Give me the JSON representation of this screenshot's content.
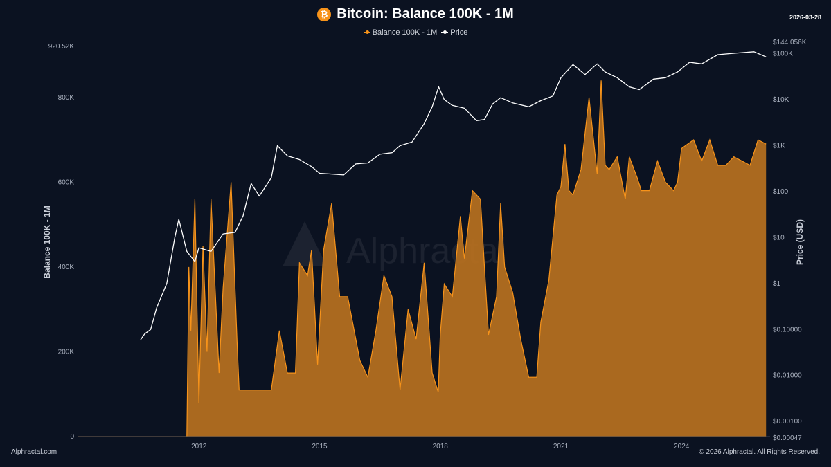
{
  "header": {
    "title": "Bitcoin: Balance 100K - 1M",
    "icon_glyph": "₿",
    "date": "2026-03-28"
  },
  "legend": [
    {
      "label": "Balance 100K - 1M",
      "color": "#f7931a"
    },
    {
      "label": "Price",
      "color": "#ffffff"
    }
  ],
  "footer": {
    "left": "Alphractal.com",
    "right": "© 2026 Alphractal. All Rights Reserved."
  },
  "watermark": "Alphractal",
  "chart_data": {
    "type": "area",
    "title": "Bitcoin: Balance 100K - 1M",
    "xlabel": "",
    "ylabel_left": "Balance 100K - 1M",
    "ylabel_right": "Price (USD)",
    "x_range": [
      2009.0,
      2026.2
    ],
    "x_ticks": [
      2012,
      2015,
      2018,
      2021,
      2024
    ],
    "left_axis": {
      "range": [
        0,
        920520
      ],
      "ticks": [
        0,
        200000,
        400000,
        600000,
        800000,
        920520
      ],
      "tick_labels": [
        "0",
        "200K",
        "400K",
        "600K",
        "800K",
        "920.52K"
      ]
    },
    "right_axis": {
      "scale": "log",
      "range": [
        0.00047,
        144056
      ],
      "ticks": [
        0.00047,
        0.001,
        0.01,
        0.1,
        1,
        10,
        100,
        1000,
        10000,
        100000,
        144056
      ],
      "tick_labels": [
        "$0.00047",
        "$0.00100",
        "$0.01000",
        "$0.10000",
        "$1",
        "$10",
        "$100",
        "$1K",
        "$10K",
        "$100K",
        "$144.056K"
      ]
    },
    "series": [
      {
        "name": "Balance 100K - 1M",
        "color": "#f7931a",
        "fill": "#b8711f",
        "x": [
          2009.0,
          2011.7,
          2011.75,
          2011.8,
          2011.9,
          2012.0,
          2012.1,
          2012.2,
          2012.3,
          2012.5,
          2012.6,
          2012.8,
          2012.95,
          2013.0,
          2013.5,
          2013.8,
          2014.0,
          2014.2,
          2014.4,
          2014.5,
          2014.7,
          2014.8,
          2014.95,
          2015.1,
          2015.3,
          2015.5,
          2015.7,
          2015.9,
          2016.0,
          2016.2,
          2016.4,
          2016.6,
          2016.8,
          2017.0,
          2017.2,
          2017.4,
          2017.6,
          2017.8,
          2017.95,
          2018.0,
          2018.1,
          2018.3,
          2018.5,
          2018.6,
          2018.8,
          2019.0,
          2019.2,
          2019.4,
          2019.5,
          2019.6,
          2019.8,
          2020.0,
          2020.2,
          2020.4,
          2020.5,
          2020.7,
          2020.9,
          2021.0,
          2021.1,
          2021.2,
          2021.3,
          2021.5,
          2021.7,
          2021.9,
          2022.0,
          2022.1,
          2022.2,
          2022.4,
          2022.6,
          2022.7,
          2022.9,
          2023.0,
          2023.2,
          2023.4,
          2023.6,
          2023.8,
          2023.9,
          2024.0,
          2024.3,
          2024.5,
          2024.7,
          2024.9,
          2025.1,
          2025.3,
          2025.5,
          2025.7,
          2025.9,
          2026.1
        ],
        "values": [
          0,
          0,
          400000,
          250000,
          560000,
          80000,
          450000,
          200000,
          560000,
          150000,
          350000,
          600000,
          220000,
          110000,
          110000,
          110000,
          250000,
          150000,
          150000,
          410000,
          380000,
          440000,
          170000,
          440000,
          550000,
          330000,
          330000,
          230000,
          180000,
          140000,
          250000,
          380000,
          330000,
          110000,
          300000,
          230000,
          410000,
          150000,
          105000,
          240000,
          360000,
          330000,
          520000,
          420000,
          580000,
          560000,
          240000,
          330000,
          550000,
          400000,
          340000,
          230000,
          140000,
          140000,
          270000,
          370000,
          570000,
          590000,
          690000,
          580000,
          570000,
          630000,
          800000,
          620000,
          840000,
          640000,
          630000,
          660000,
          560000,
          660000,
          610000,
          580000,
          580000,
          650000,
          600000,
          580000,
          600000,
          680000,
          700000,
          650000,
          700000,
          640000,
          640000,
          660000,
          650000,
          640000,
          700000,
          690000
        ]
      },
      {
        "name": "Price",
        "color": "#ffffff",
        "axis": "right",
        "x": [
          2010.55,
          2010.65,
          2010.8,
          2010.95,
          2011.2,
          2011.4,
          2011.5,
          2011.7,
          2011.9,
          2012.0,
          2012.3,
          2012.6,
          2012.9,
          2013.1,
          2013.3,
          2013.5,
          2013.8,
          2013.95,
          2014.2,
          2014.5,
          2014.8,
          2015.0,
          2015.3,
          2015.6,
          2015.9,
          2016.2,
          2016.5,
          2016.8,
          2017.0,
          2017.3,
          2017.6,
          2017.8,
          2017.96,
          2018.1,
          2018.3,
          2018.6,
          2018.9,
          2019.1,
          2019.3,
          2019.5,
          2019.8,
          2020.2,
          2020.5,
          2020.8,
          2021.0,
          2021.3,
          2021.6,
          2021.9,
          2022.1,
          2022.4,
          2022.7,
          2022.95,
          2023.3,
          2023.6,
          2023.9,
          2024.2,
          2024.5,
          2024.9,
          2025.2,
          2025.5,
          2025.8,
          2026.1
        ],
        "values": [
          0.06,
          0.08,
          0.1,
          0.3,
          1,
          10,
          25,
          5,
          3,
          6,
          5,
          12,
          13,
          30,
          150,
          80,
          200,
          1000,
          600,
          500,
          350,
          250,
          240,
          230,
          400,
          420,
          650,
          700,
          1000,
          1200,
          3000,
          7000,
          19000,
          10000,
          7500,
          6500,
          3500,
          3700,
          8000,
          11000,
          8500,
          7000,
          9500,
          12000,
          30000,
          58000,
          35000,
          60000,
          40000,
          30000,
          19000,
          16500,
          28000,
          30000,
          40000,
          65000,
          60000,
          95000,
          100000,
          105000,
          110000,
          85000
        ]
      }
    ]
  }
}
